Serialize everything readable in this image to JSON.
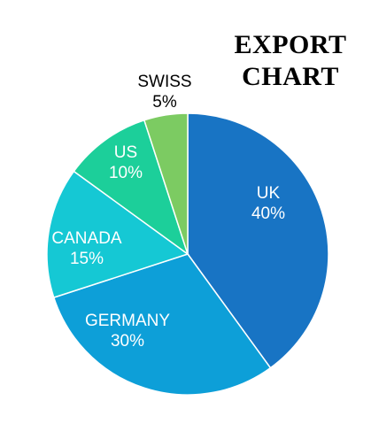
{
  "chart_data": {
    "type": "pie",
    "title_lines": [
      "EXPORT",
      "CHART"
    ],
    "slices": [
      {
        "label": "UK",
        "value": 40,
        "value_label": "40%",
        "color": "#1874c4",
        "text_color": "#ffffff"
      },
      {
        "label": "GERMANY",
        "value": 30,
        "value_label": "30%",
        "color": "#0d9fd8",
        "text_color": "#ffffff"
      },
      {
        "label": "CANADA",
        "value": 15,
        "value_label": "15%",
        "color": "#15c8d4",
        "text_color": "#ffffff"
      },
      {
        "label": "US",
        "value": 10,
        "value_label": "10%",
        "color": "#1ccf9a",
        "text_color": "#ffffff"
      },
      {
        "label": "SWISS",
        "value": 5,
        "value_label": "5%",
        "color": "#7ccb62",
        "text_color": "#000000"
      }
    ]
  }
}
